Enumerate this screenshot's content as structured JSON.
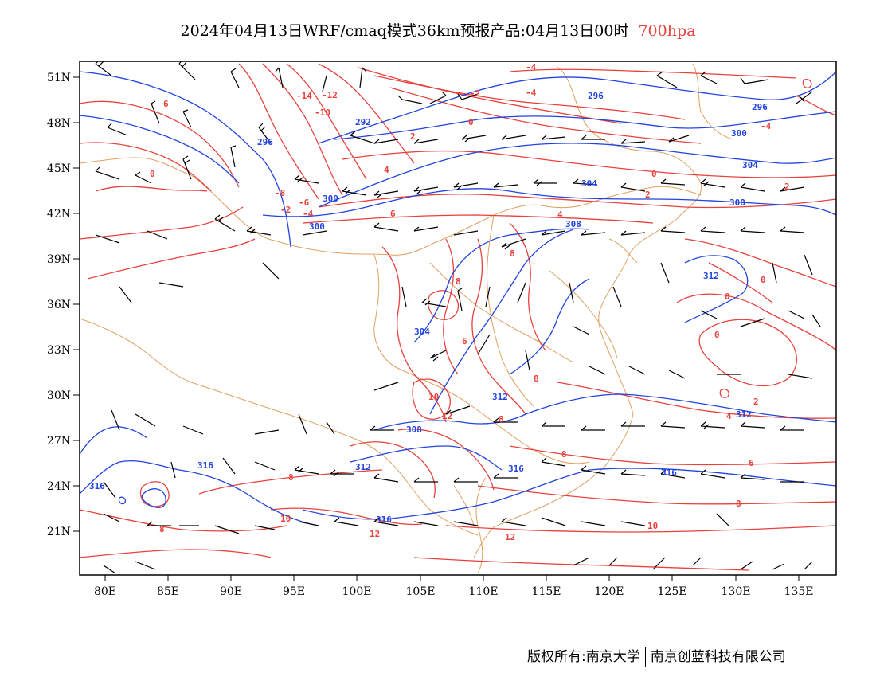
{
  "title": {
    "main": "2024年04月13日WRF/cmaq模式36km预报产品:04月13日00时",
    "level": "700hpa"
  },
  "footer": {
    "left": "版权所有:南京大学",
    "right": "南京创蓝科技有限公司"
  },
  "colors": {
    "temperature": "#e8413c",
    "geopotential": "#2143e0",
    "boundary": "#e0a060",
    "barb": "#000000"
  },
  "axes": {
    "lon_ticks": [
      "80E",
      "85E",
      "90E",
      "95E",
      "100E",
      "105E",
      "110E",
      "115E",
      "120E",
      "125E",
      "130E",
      "135E"
    ],
    "lat_ticks": [
      "51N",
      "48N",
      "45N",
      "42N",
      "39N",
      "36N",
      "33N",
      "30N",
      "27N",
      "24N",
      "21N"
    ]
  },
  "temperature_labels": [
    "-14",
    "-12",
    "-10",
    "-8",
    "-6",
    "-4",
    "-2",
    "0",
    "2",
    "4",
    "6",
    "8",
    "10",
    "12"
  ],
  "geopotential_labels": [
    "292",
    "296",
    "300",
    "304",
    "308",
    "312",
    "316"
  ]
}
